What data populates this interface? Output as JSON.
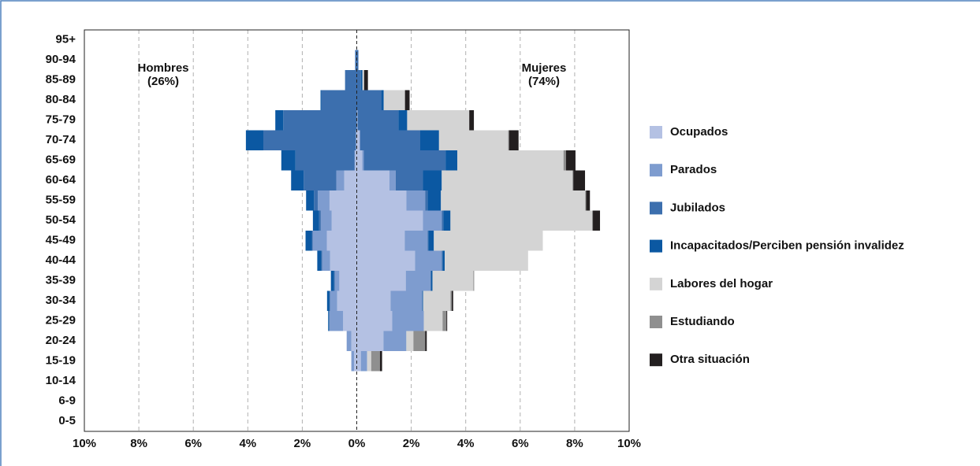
{
  "chart_data": {
    "type": "pyramid",
    "categories": [
      "95+",
      "90-94",
      "85-89",
      "80-84",
      "75-79",
      "70-74",
      "65-69",
      "60-64",
      "55-59",
      "50-54",
      "45-49",
      "40-44",
      "35-39",
      "30-34",
      "25-29",
      "20-24",
      "15-19",
      "10-14",
      "6-9",
      "0-5"
    ],
    "annotations": [
      [
        "Hombres",
        "(26%)"
      ],
      [
        "Mujeres",
        "(74%)"
      ]
    ],
    "xlim": [
      -10,
      10
    ],
    "xticks": [
      {
        "value": -10,
        "label": "10%"
      },
      {
        "value": -8,
        "label": "8%"
      },
      {
        "value": -6,
        "label": "6%"
      },
      {
        "value": -4,
        "label": "4%"
      },
      {
        "value": -2,
        "label": "2%"
      },
      {
        "value": 0,
        "label": "0%"
      },
      {
        "value": 2,
        "label": "2%"
      },
      {
        "value": 4,
        "label": "4%"
      },
      {
        "value": 6,
        "label": "6%"
      },
      {
        "value": 8,
        "label": "8%"
      },
      {
        "value": 10,
        "label": "10%"
      }
    ],
    "grid": true,
    "series": [
      {
        "name": "Ocupados",
        "color": "#b4c1e3",
        "men": [
          0,
          0,
          0,
          0,
          0,
          -0.03,
          -0.06,
          -0.46,
          -1.0,
          -0.92,
          -1.1,
          -0.98,
          -0.64,
          -0.72,
          -0.5,
          -0.2,
          -0.1,
          0,
          0,
          0
        ],
        "women": [
          0,
          0,
          0,
          0,
          0.03,
          0.1,
          0.2,
          1.2,
          1.82,
          2.43,
          1.76,
          2.14,
          1.8,
          1.24,
          1.3,
          0.98,
          0.15,
          0,
          0,
          0
        ]
      },
      {
        "name": "Parados",
        "color": "#7e9ccf",
        "men": [
          0,
          0,
          0,
          0,
          0,
          0,
          -0.02,
          -0.29,
          -0.43,
          -0.4,
          -0.52,
          -0.29,
          -0.17,
          -0.26,
          -0.5,
          -0.17,
          -0.1,
          0,
          0,
          0
        ],
        "women": [
          0,
          0,
          0,
          0,
          0,
          0.03,
          0.06,
          0.23,
          0.69,
          0.69,
          0.84,
          0.98,
          0.9,
          1.16,
          1.16,
          0.84,
          0.23,
          0,
          0,
          0
        ]
      },
      {
        "name": "Jubilados",
        "color": "#3c6fae",
        "men": [
          0,
          -0.06,
          -0.43,
          -1.3,
          -2.7,
          -3.4,
          -2.17,
          -1.2,
          -0.14,
          -0.06,
          -0.03,
          -0.03,
          -0.02,
          -0.02,
          -0.02,
          0,
          0,
          0,
          0,
          0
        ],
        "women": [
          0,
          0.06,
          0.15,
          0.9,
          1.5,
          2.2,
          3.0,
          1.0,
          0.09,
          0.06,
          0.03,
          0.03,
          0.03,
          0.02,
          0,
          0,
          0,
          0,
          0,
          0
        ]
      },
      {
        "name": "Incapacitados/Perciben pensión invalidez",
        "color": "#0b58a2",
        "men": [
          0,
          0,
          0,
          -0.03,
          -0.29,
          -0.64,
          -0.52,
          -0.46,
          -0.29,
          -0.23,
          -0.23,
          -0.15,
          -0.12,
          -0.09,
          -0.03,
          0,
          0,
          0,
          0,
          0
        ],
        "women": [
          0,
          0,
          0.06,
          0.09,
          0.32,
          0.69,
          0.43,
          0.69,
          0.49,
          0.26,
          0.2,
          0.08,
          0.05,
          0.02,
          0,
          0,
          0,
          0,
          0,
          0
        ]
      },
      {
        "name": "Labores del hogar",
        "color": "#d4d4d4",
        "men": [
          0,
          0,
          0,
          0,
          0,
          0,
          0,
          0,
          0,
          0,
          0,
          0,
          0,
          0,
          0,
          0,
          0,
          0,
          0,
          0
        ],
        "women": [
          0,
          0,
          0.06,
          0.78,
          2.28,
          2.54,
          3.9,
          4.8,
          5.3,
          5.2,
          4.0,
          3.06,
          1.5,
          1.0,
          0.69,
          0.26,
          0.15,
          0,
          0,
          0
        ]
      },
      {
        "name": "Estudiando",
        "color": "#8f8f8f",
        "men": [
          0,
          0,
          0,
          0,
          0,
          0,
          0,
          0,
          0,
          0,
          0,
          0,
          0,
          0,
          0,
          0,
          0,
          0,
          0,
          0
        ],
        "women": [
          0,
          0,
          0,
          0,
          0,
          0.03,
          0.09,
          0.03,
          0.03,
          0.03,
          0,
          0,
          0.03,
          0.05,
          0.14,
          0.43,
          0.32,
          0,
          0,
          0
        ]
      },
      {
        "name": "Otra situación",
        "color": "#231f20",
        "men": [
          0,
          0,
          0,
          0,
          0,
          0,
          0,
          0,
          0,
          0,
          0,
          0,
          0,
          0,
          0,
          0,
          0,
          0,
          0,
          0
        ],
        "women": [
          0,
          0,
          0.14,
          0.17,
          0.17,
          0.35,
          0.35,
          0.43,
          0.14,
          0.26,
          0,
          0,
          0,
          0.05,
          0.03,
          0.06,
          0.08,
          0,
          0,
          0
        ]
      }
    ]
  }
}
